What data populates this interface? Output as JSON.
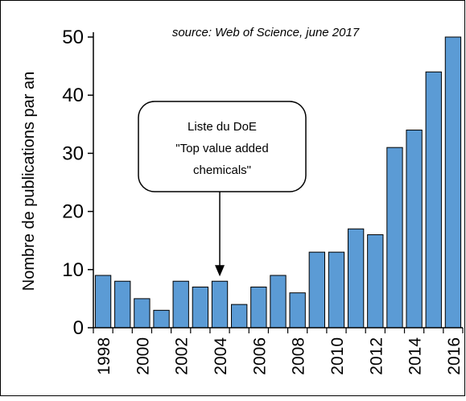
{
  "chart_data": {
    "type": "bar",
    "source_note": "source: Web of Science, june 2017",
    "ylabel": "Nombre de publications par an",
    "xlabel": "",
    "title": "",
    "ylim": [
      0,
      50
    ],
    "yticks": [
      "0",
      "10",
      "20",
      "30",
      "40",
      "50"
    ],
    "categories": [
      "1998",
      "1999",
      "2000",
      "2001",
      "2002",
      "2003",
      "2004",
      "2005",
      "2006",
      "2007",
      "2008",
      "2009",
      "2010",
      "2011",
      "2012",
      "2013",
      "2014",
      "2015",
      "2016"
    ],
    "xtick_labels": [
      "1998",
      "2000",
      "2002",
      "2004",
      "2006",
      "2008",
      "2010",
      "2012",
      "2014",
      "2016"
    ],
    "values": [
      9,
      8,
      5,
      3,
      8,
      7,
      8,
      4,
      7,
      9,
      6,
      13,
      13,
      17,
      16,
      31,
      34,
      44,
      50
    ],
    "bar_color": "#5b9bd5",
    "grid": false,
    "legend": "none",
    "annotation": {
      "lines": [
        "Liste du DoE",
        "\"Top value added",
        "chemicals\""
      ],
      "points_to_category": "2004"
    }
  }
}
